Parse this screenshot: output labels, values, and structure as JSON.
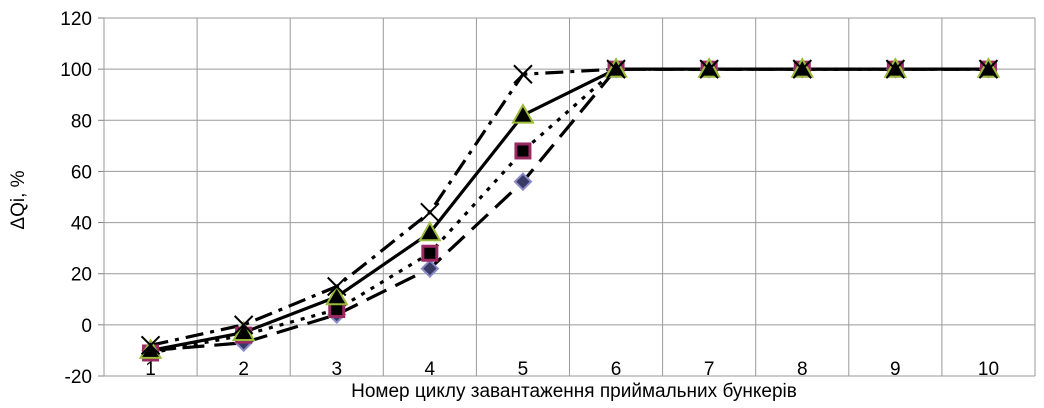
{
  "chart_data": {
    "type": "line",
    "title": "",
    "xlabel": "Номер циклу завантаження приймальних бункерів",
    "ylabel": "ΔQi, %",
    "categories": [
      "1",
      "2",
      "3",
      "4",
      "5",
      "6",
      "7",
      "8",
      "9",
      "10"
    ],
    "ylim": [
      -20,
      120
    ],
    "yticks": [
      -20,
      0,
      20,
      40,
      60,
      80,
      100,
      120
    ],
    "grid": true,
    "legend": "none",
    "series": [
      {
        "values": [
          -10,
          -7,
          4,
          22,
          56,
          100,
          100,
          100,
          100,
          100
        ],
        "line_style": "long-dash",
        "marker": "diamond",
        "marker_fill": "#3a3a66",
        "marker_stroke": "#8a8ac8"
      },
      {
        "values": [
          -11,
          -4,
          6,
          28,
          68,
          100,
          100,
          100,
          100,
          100
        ],
        "line_style": "dotted",
        "marker": "square",
        "marker_fill": "#000000",
        "marker_stroke": "#9c2a62"
      },
      {
        "values": [
          -10,
          -3,
          11,
          36,
          82,
          100,
          100,
          100,
          100,
          100
        ],
        "line_style": "solid",
        "marker": "triangle",
        "marker_fill": "#000000",
        "marker_stroke": "#9bbb3a"
      },
      {
        "values": [
          -8,
          0,
          15,
          44,
          98,
          100,
          100,
          100,
          100,
          100
        ],
        "line_style": "dash-dot",
        "marker": "cross",
        "marker_fill": "none",
        "marker_stroke": "#000000"
      }
    ]
  }
}
